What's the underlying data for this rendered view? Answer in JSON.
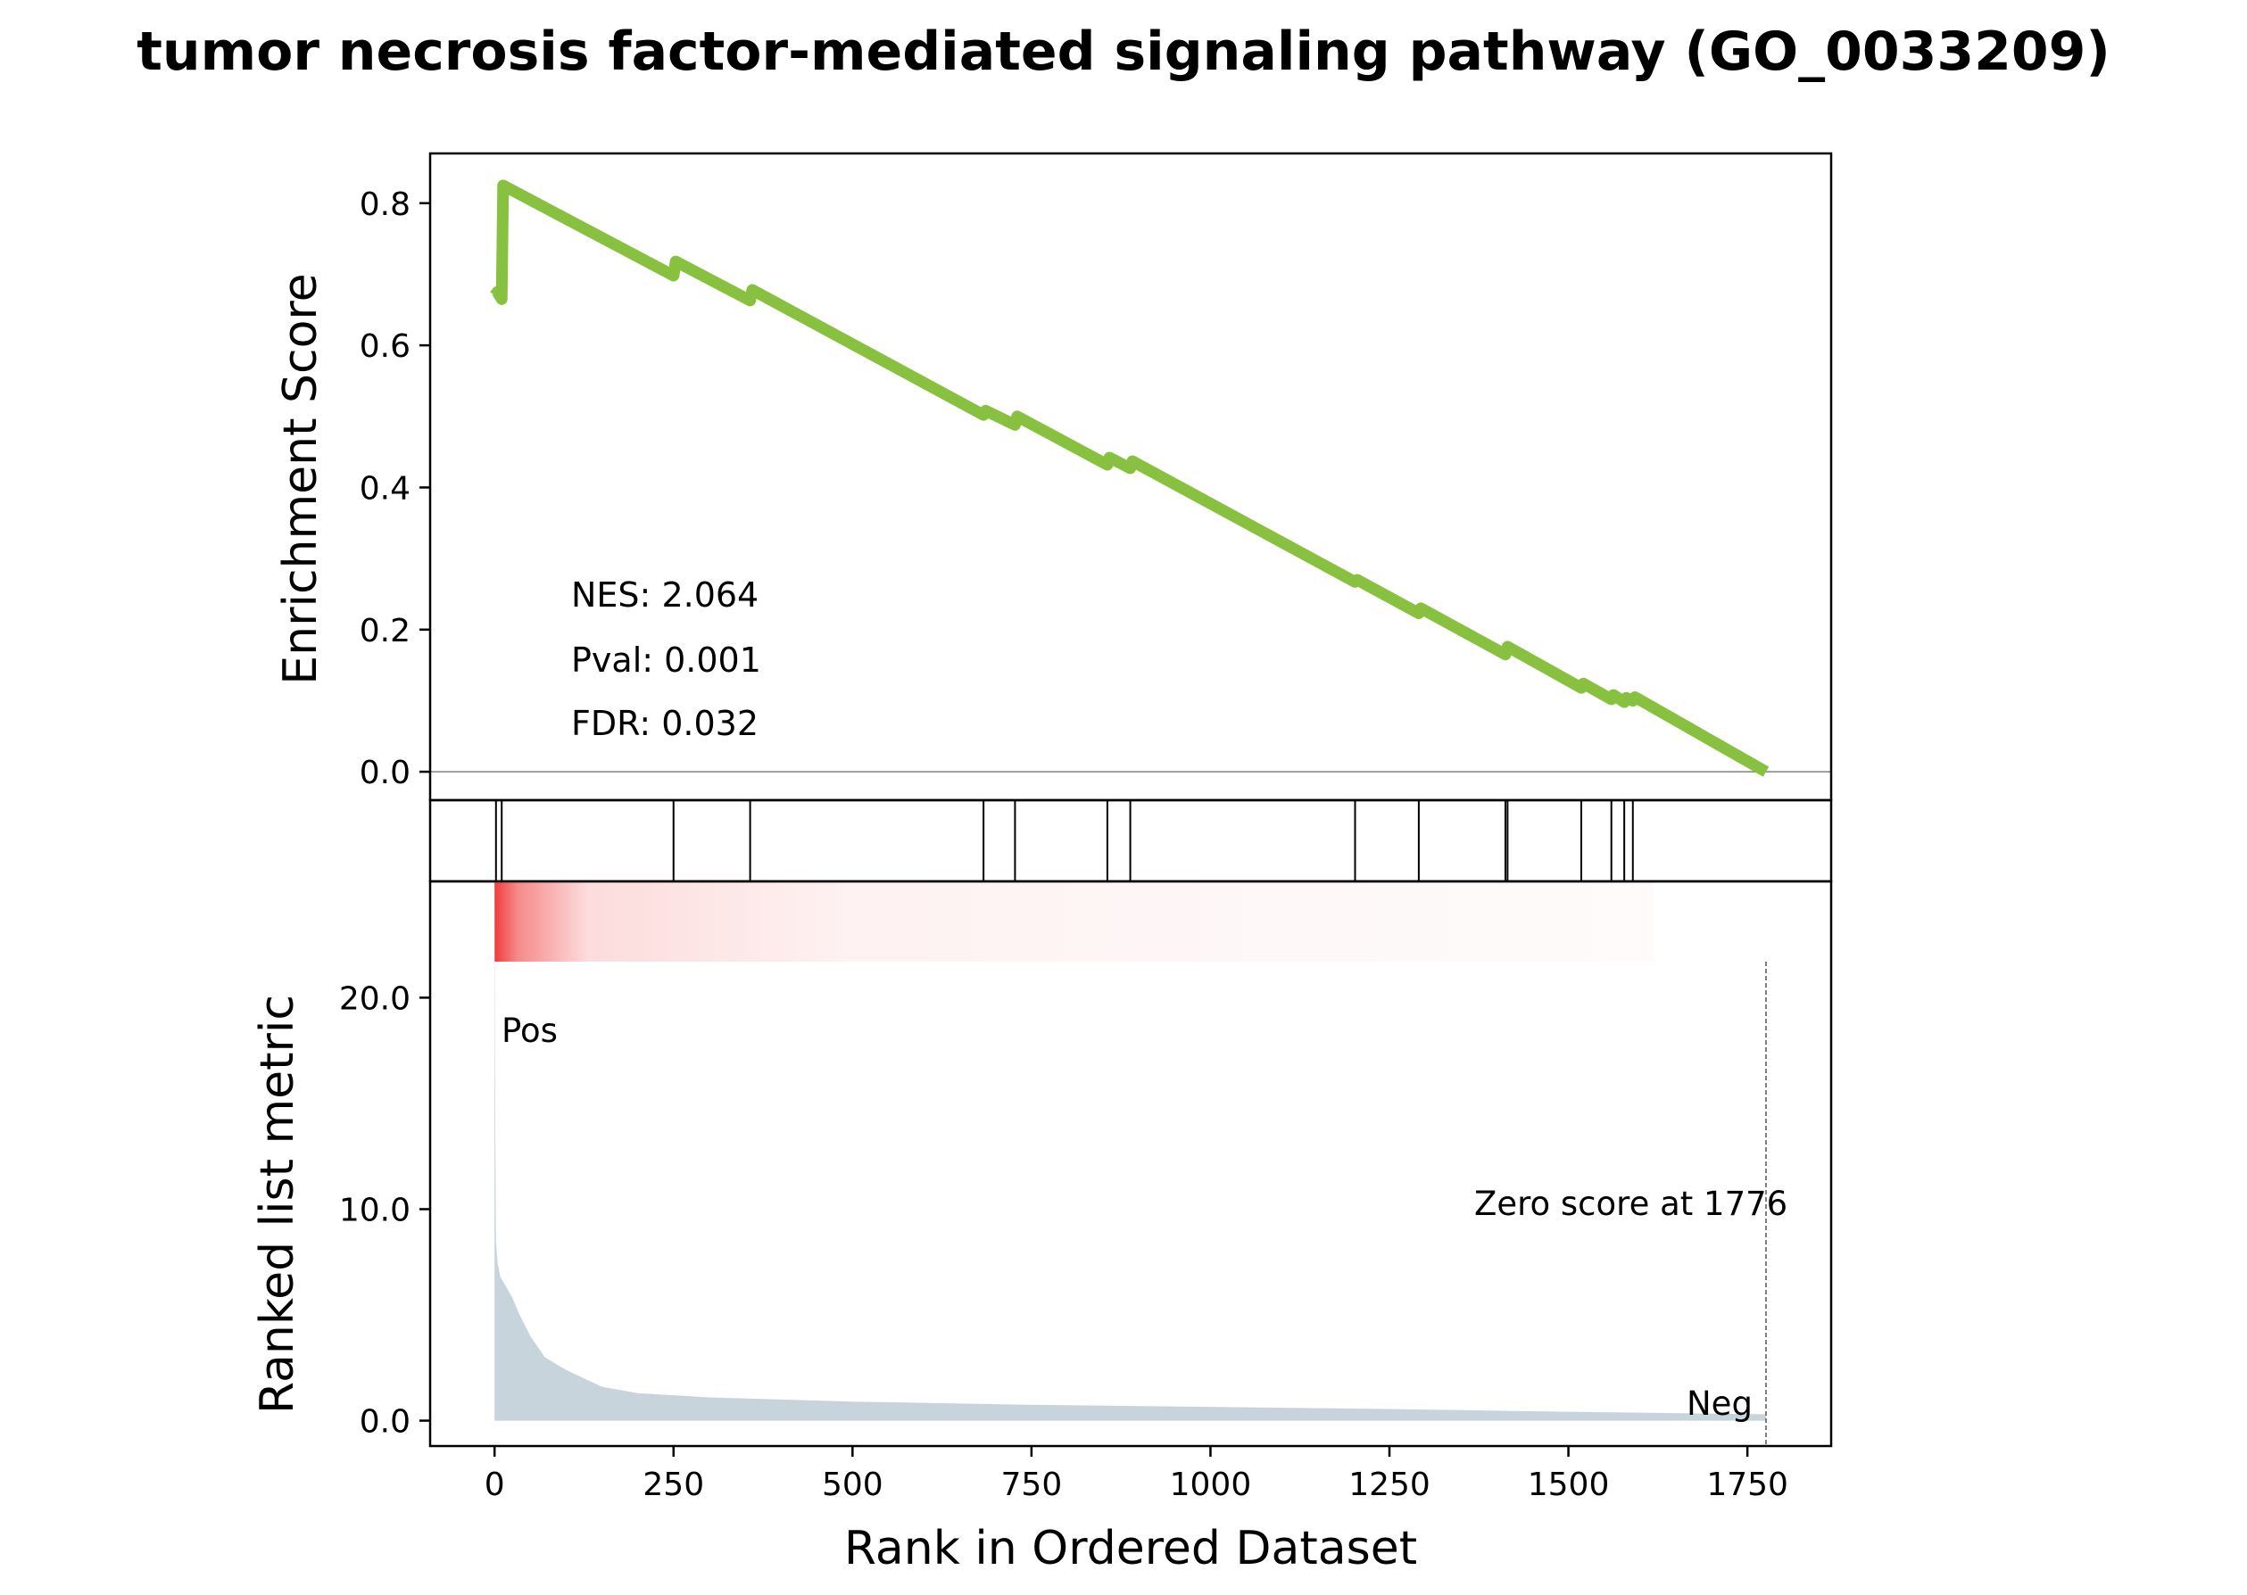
{
  "chart_data": {
    "type": "line",
    "title": "tumor necrosis factor-mediated signaling pathway (GO_0033209)",
    "xlabel": "Rank in Ordered Dataset",
    "xlim": [
      -90,
      1867
    ],
    "xticks": [
      0,
      250,
      500,
      750,
      1000,
      1250,
      1500,
      1750
    ],
    "xtick_labels": [
      "0",
      "250",
      "500",
      "750",
      "1000",
      "1250",
      "1500",
      "1750"
    ],
    "top_panel": {
      "ylabel": "Enrichment Score",
      "ylim": [
        -0.04,
        0.87
      ],
      "yticks": [
        0.0,
        0.2,
        0.4,
        0.6,
        0.8
      ],
      "ytick_labels": [
        "0.0",
        "0.2",
        "0.4",
        "0.6",
        "0.8"
      ],
      "series": [
        {
          "color": "#88c140",
          "x": [
            0,
            4,
            10,
            12,
            250,
            253,
            357,
            360,
            683,
            686,
            727,
            730,
            856,
            859,
            888,
            891,
            1202,
            1205,
            1291,
            1294,
            1412,
            1415,
            1518,
            1521,
            1560,
            1563,
            1578,
            1581,
            1590,
            1593,
            1776
          ],
          "y": [
            0.67,
            0.675,
            0.665,
            0.825,
            0.698,
            0.718,
            0.663,
            0.678,
            0.502,
            0.508,
            0.488,
            0.5,
            0.432,
            0.442,
            0.427,
            0.437,
            0.267,
            0.27,
            0.223,
            0.23,
            0.165,
            0.176,
            0.118,
            0.124,
            0.102,
            0.108,
            0.098,
            0.104,
            0.1,
            0.105,
            0.0
          ]
        }
      ],
      "zero_line": 0.0,
      "annotations": [
        "NES: 2.064",
        "Pval: 0.001",
        "FDR: 0.032"
      ]
    },
    "hits_panel": {
      "hit_ranks": [
        2,
        10,
        250,
        357,
        683,
        727,
        856,
        888,
        1202,
        1291,
        1412,
        1415,
        1518,
        1560,
        1578,
        1590
      ]
    },
    "bottom_panel": {
      "type": "area",
      "ylabel": "Ranked list metric",
      "ylim": [
        -1.2,
        25.5
      ],
      "yticks": [
        0.0,
        10.0,
        20.0
      ],
      "ytick_labels": [
        "0.0",
        "10.0",
        "20.0"
      ],
      "fill_color": "#c8d4dc",
      "x": [
        0,
        1,
        2,
        4,
        8,
        15,
        25,
        35,
        50,
        70,
        100,
        150,
        200,
        300,
        500,
        750,
        1000,
        1250,
        1500,
        1776
      ],
      "y": [
        24.5,
        14.0,
        8.5,
        7.5,
        6.8,
        6.4,
        5.8,
        5.0,
        4.0,
        3.0,
        2.4,
        1.6,
        1.3,
        1.1,
        0.9,
        0.75,
        0.65,
        0.55,
        0.42,
        0.3
      ],
      "zero_score_rank": 1776,
      "zero_score_label": "Zero score at 1776",
      "pos_label": "Pos",
      "neg_label": "Neg",
      "pos_color": "#ff0000",
      "neg_color": "#0000ff"
    },
    "heat_strip": {
      "color": "#f03c3c",
      "x_range": [
        0,
        1620
      ]
    }
  }
}
